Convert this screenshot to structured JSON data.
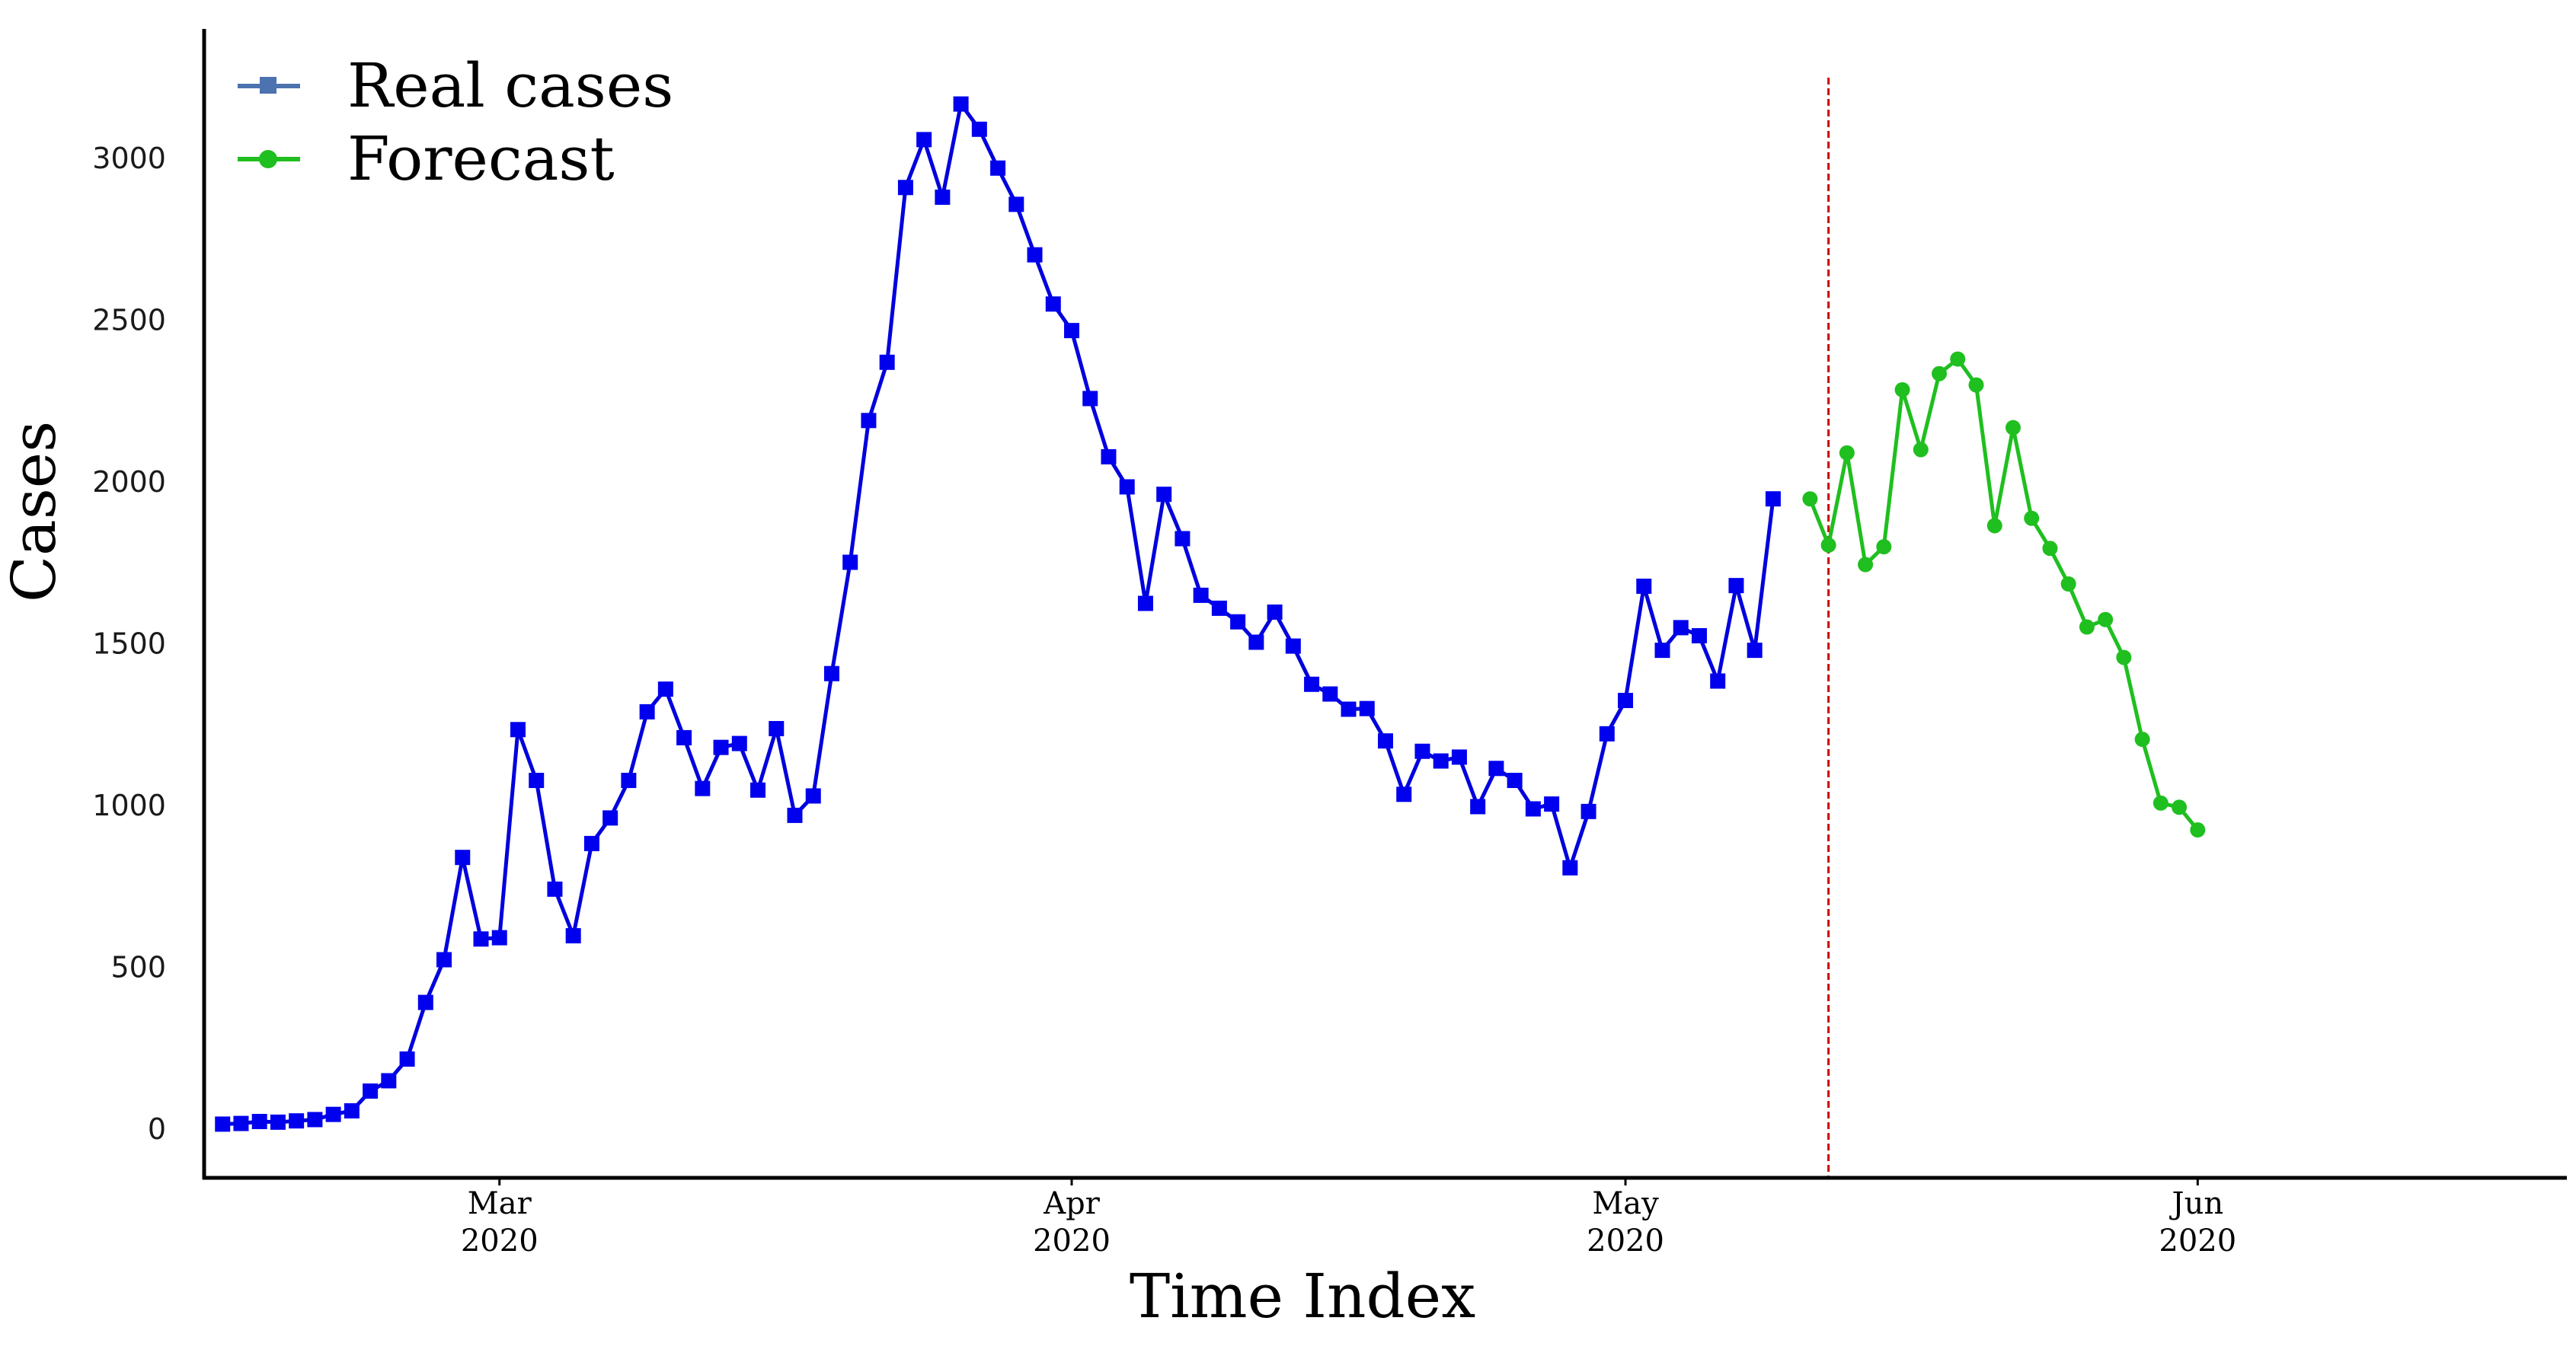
{
  "chart_data": {
    "type": "line",
    "xlabel": "Time Index",
    "ylabel": "Cases",
    "ylim": [
      -150,
      3400
    ],
    "x_range": [
      "2020-02-14",
      "2020-06-21"
    ],
    "y_ticks": [
      0,
      500,
      1000,
      1500,
      2000,
      2500,
      3000
    ],
    "x_ticks": [
      {
        "date": "2020-03-01",
        "month": "Mar",
        "year": "2020"
      },
      {
        "date": "2020-04-01",
        "month": "Apr",
        "year": "2020"
      },
      {
        "date": "2020-05-01",
        "month": "May",
        "year": "2020"
      },
      {
        "date": "2020-06-01",
        "month": "Jun",
        "year": "2020"
      }
    ],
    "forecast_start": "2020-05-12",
    "grid": false,
    "legend": "top-left",
    "colors": {
      "real_line": "#0000dd",
      "real_marker": "#0000ee",
      "real_legend": "#4c72b0",
      "forecast": "#1fbf1f",
      "divider": "#cc0000"
    },
    "series": [
      {
        "name": "Real cases",
        "marker": "square",
        "start": "2020-02-15",
        "values": [
          16,
          18,
          24,
          22,
          26,
          30,
          46,
          57,
          118,
          150,
          217,
          392,
          524,
          840,
          588,
          592,
          1235,
          1078,
          742,
          598,
          883,
          962,
          1078,
          1290,
          1360,
          1210,
          1053,
          1180,
          1192,
          1048,
          1238,
          970,
          1030,
          1408,
          1752,
          2190,
          2370,
          2910,
          3058,
          2880,
          3168,
          3090,
          2970,
          2858,
          2702,
          2550,
          2468,
          2258,
          2078,
          1985,
          1625,
          1962,
          1825,
          1650,
          1610,
          1568,
          1505,
          1598,
          1493,
          1375,
          1345,
          1298,
          1300,
          1200,
          1035,
          1168,
          1138,
          1150,
          997,
          1115,
          1078,
          990,
          1005,
          808,
          982,
          1222,
          1325,
          1678,
          1480,
          1550,
          1525,
          1385,
          1680,
          1480,
          1948
        ]
      },
      {
        "name": "Forecast",
        "marker": "circle",
        "start": "2020-05-11",
        "values": [
          1948,
          1805,
          2090,
          1745,
          1800,
          2285,
          2100,
          2335,
          2380,
          2300,
          1865,
          2168,
          1888,
          1795,
          1685,
          1552,
          1575,
          1458,
          1205,
          1008,
          995,
          925
        ]
      }
    ]
  }
}
